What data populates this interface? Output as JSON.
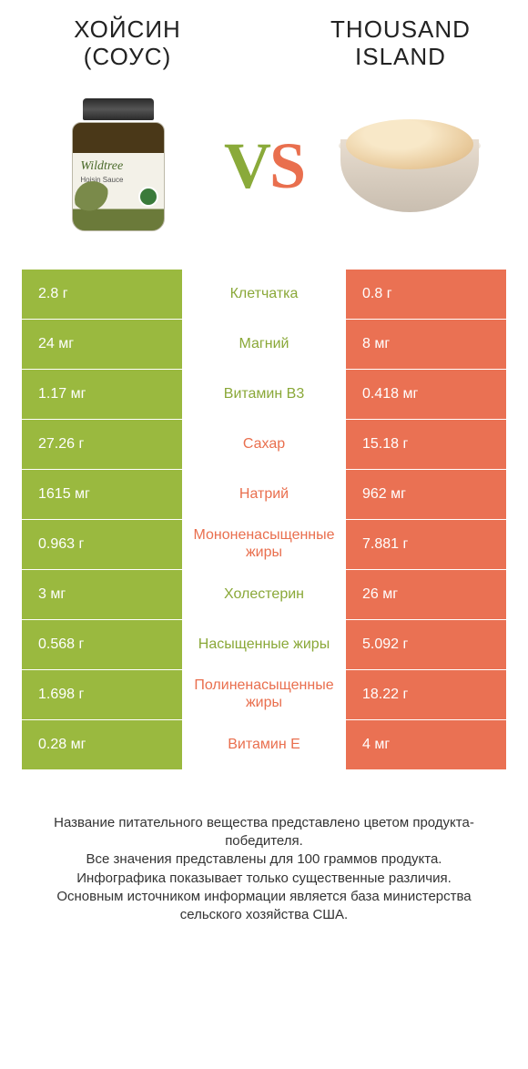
{
  "products": {
    "left": {
      "title": "ХОЙСИН (СОУС)"
    },
    "right": {
      "title": "THOUSAND ISLAND"
    }
  },
  "vs": {
    "v": "V",
    "s": "S"
  },
  "colors": {
    "green": "#9ab93f",
    "orange": "#ea7153"
  },
  "rows": [
    {
      "name": "Клетчатка",
      "left": "2.8 г",
      "right": "0.8 г",
      "winner": "left"
    },
    {
      "name": "Магний",
      "left": "24 мг",
      "right": "8 мг",
      "winner": "left"
    },
    {
      "name": "Витамин B3",
      "left": "1.17 мг",
      "right": "0.418 мг",
      "winner": "left"
    },
    {
      "name": "Сахар",
      "left": "27.26 г",
      "right": "15.18 г",
      "winner": "right"
    },
    {
      "name": "Натрий",
      "left": "1615 мг",
      "right": "962 мг",
      "winner": "right"
    },
    {
      "name": "Мононенасыщенные жиры",
      "left": "0.963 г",
      "right": "7.881 г",
      "winner": "right"
    },
    {
      "name": "Холестерин",
      "left": "3 мг",
      "right": "26 мг",
      "winner": "left"
    },
    {
      "name": "Насыщенные жиры",
      "left": "0.568 г",
      "right": "5.092 г",
      "winner": "left"
    },
    {
      "name": "Полиненасыщенные жиры",
      "left": "1.698 г",
      "right": "18.22 г",
      "winner": "right"
    },
    {
      "name": "Витамин E",
      "left": "0.28 мг",
      "right": "4 мг",
      "winner": "right"
    }
  ],
  "footer": {
    "l1": "Название питательного вещества представлено цветом продукта-победителя.",
    "l2": "Все значения представлены для 100 граммов продукта.",
    "l3": "Инфографика показывает только существенные различия.",
    "l4": "Основным источником информации является база министерства сельского хозяйства США."
  }
}
